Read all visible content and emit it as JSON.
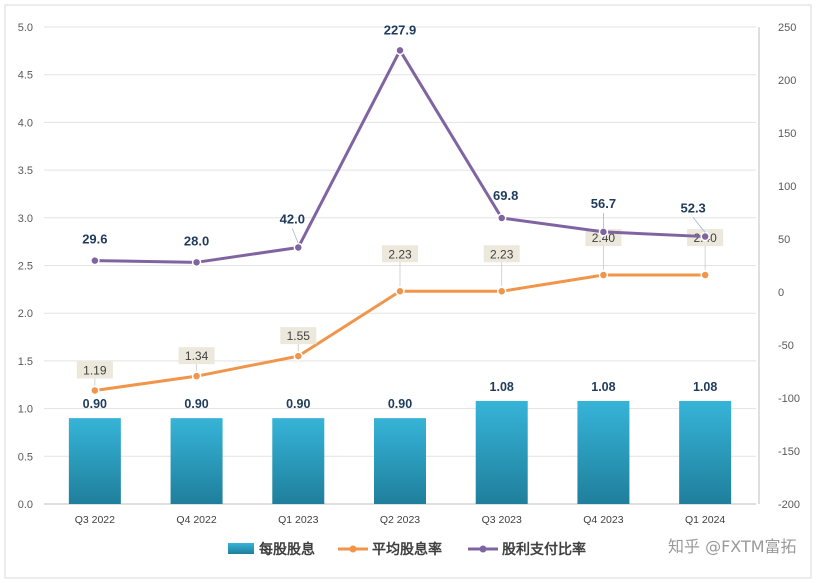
{
  "chart_data": {
    "type": "bar",
    "categories": [
      "Q3 2022",
      "Q4 2022",
      "Q1 2023",
      "Q2 2023",
      "Q3 2023",
      "Q4 2023",
      "Q1 2024"
    ],
    "series": [
      {
        "name": "每股股息",
        "type": "bar",
        "axis": "left",
        "color": "#2fa8cc",
        "values": [
          0.9,
          0.9,
          0.9,
          0.9,
          1.08,
          1.08,
          1.08
        ],
        "labels": [
          "0.90",
          "0.90",
          "0.90",
          "0.90",
          "1.08",
          "1.08",
          "1.08"
        ]
      },
      {
        "name": "平均股息率",
        "type": "line",
        "axis": "left",
        "color": "#f0954a",
        "values": [
          1.19,
          1.34,
          1.55,
          2.23,
          2.23,
          2.4,
          2.4
        ],
        "labels": [
          "1.19",
          "1.34",
          "1.55",
          "2.23",
          "2.23",
          "2.40",
          "2.40"
        ]
      },
      {
        "name": "股利支付比率",
        "type": "line",
        "axis": "right",
        "color": "#8064a2",
        "values": [
          29.6,
          28.0,
          42.0,
          227.9,
          69.8,
          56.7,
          52.3
        ],
        "labels": [
          "29.6",
          "28.0",
          "42.0",
          "227.9",
          "69.8",
          "56.7",
          "52.3"
        ]
      }
    ],
    "y_left": {
      "min": 0.0,
      "max": 5.0,
      "ticks": [
        "0.0",
        "0.5",
        "1.0",
        "1.5",
        "2.0",
        "2.5",
        "3.0",
        "3.5",
        "4.0",
        "4.5",
        "5.0"
      ]
    },
    "y_right": {
      "min": -200,
      "max": 250,
      "ticks": [
        "-200",
        "-150",
        "-100",
        "-50",
        "0",
        "50",
        "100",
        "150",
        "200",
        "250"
      ]
    },
    "grid": true,
    "legend_position": "bottom"
  },
  "watermark": "知乎 @FXTM富拓"
}
